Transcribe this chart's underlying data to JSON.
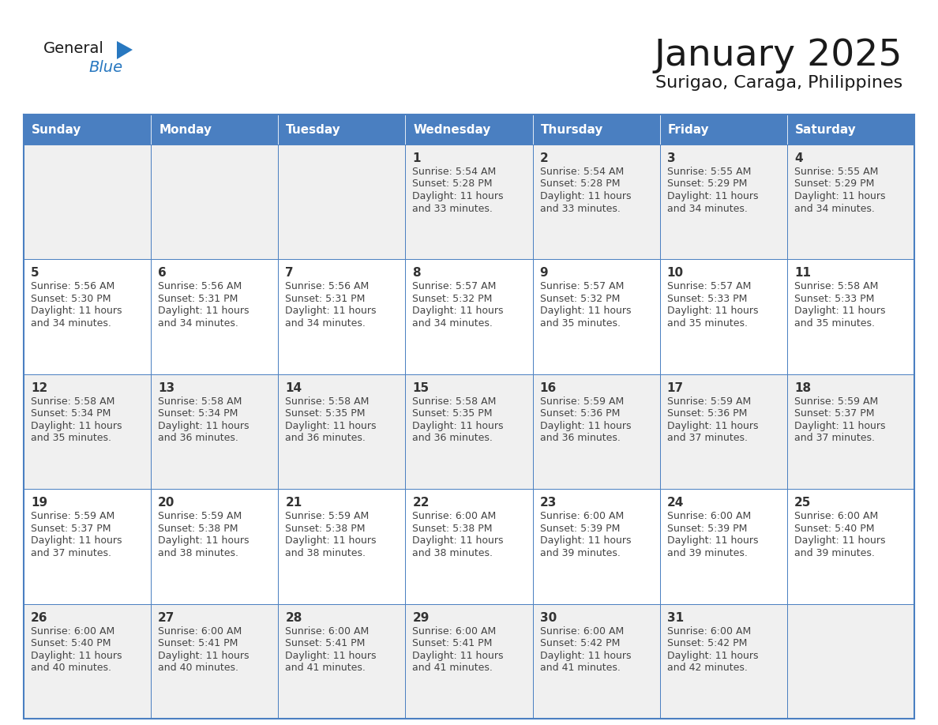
{
  "title": "January 2025",
  "subtitle": "Surigao, Caraga, Philippines",
  "days_of_week": [
    "Sunday",
    "Monday",
    "Tuesday",
    "Wednesday",
    "Thursday",
    "Friday",
    "Saturday"
  ],
  "header_bg": "#4a7fc1",
  "header_text": "#FFFFFF",
  "cell_bg_odd": "#f0f0f0",
  "cell_bg_even": "#FFFFFF",
  "cell_border_color": "#4a7fc1",
  "day_num_color": "#333333",
  "text_color": "#444444",
  "logo_general_color": "#1a1a1a",
  "logo_blue_color": "#2878C0",
  "calendar": [
    [
      null,
      null,
      null,
      1,
      2,
      3,
      4
    ],
    [
      5,
      6,
      7,
      8,
      9,
      10,
      11
    ],
    [
      12,
      13,
      14,
      15,
      16,
      17,
      18
    ],
    [
      19,
      20,
      21,
      22,
      23,
      24,
      25
    ],
    [
      26,
      27,
      28,
      29,
      30,
      31,
      null
    ]
  ],
  "sunrise": {
    "1": "5:54 AM",
    "2": "5:54 AM",
    "3": "5:55 AM",
    "4": "5:55 AM",
    "5": "5:56 AM",
    "6": "5:56 AM",
    "7": "5:56 AM",
    "8": "5:57 AM",
    "9": "5:57 AM",
    "10": "5:57 AM",
    "11": "5:58 AM",
    "12": "5:58 AM",
    "13": "5:58 AM",
    "14": "5:58 AM",
    "15": "5:58 AM",
    "16": "5:59 AM",
    "17": "5:59 AM",
    "18": "5:59 AM",
    "19": "5:59 AM",
    "20": "5:59 AM",
    "21": "5:59 AM",
    "22": "6:00 AM",
    "23": "6:00 AM",
    "24": "6:00 AM",
    "25": "6:00 AM",
    "26": "6:00 AM",
    "27": "6:00 AM",
    "28": "6:00 AM",
    "29": "6:00 AM",
    "30": "6:00 AM",
    "31": "6:00 AM"
  },
  "sunset": {
    "1": "5:28 PM",
    "2": "5:28 PM",
    "3": "5:29 PM",
    "4": "5:29 PM",
    "5": "5:30 PM",
    "6": "5:31 PM",
    "7": "5:31 PM",
    "8": "5:32 PM",
    "9": "5:32 PM",
    "10": "5:33 PM",
    "11": "5:33 PM",
    "12": "5:34 PM",
    "13": "5:34 PM",
    "14": "5:35 PM",
    "15": "5:35 PM",
    "16": "5:36 PM",
    "17": "5:36 PM",
    "18": "5:37 PM",
    "19": "5:37 PM",
    "20": "5:38 PM",
    "21": "5:38 PM",
    "22": "5:38 PM",
    "23": "5:39 PM",
    "24": "5:39 PM",
    "25": "5:40 PM",
    "26": "5:40 PM",
    "27": "5:41 PM",
    "28": "5:41 PM",
    "29": "5:41 PM",
    "30": "5:42 PM",
    "31": "5:42 PM"
  },
  "daylight": {
    "1": "11 hours and 33 minutes.",
    "2": "11 hours and 33 minutes.",
    "3": "11 hours and 34 minutes.",
    "4": "11 hours and 34 minutes.",
    "5": "11 hours and 34 minutes.",
    "6": "11 hours and 34 minutes.",
    "7": "11 hours and 34 minutes.",
    "8": "11 hours and 34 minutes.",
    "9": "11 hours and 35 minutes.",
    "10": "11 hours and 35 minutes.",
    "11": "11 hours and 35 minutes.",
    "12": "11 hours and 35 minutes.",
    "13": "11 hours and 36 minutes.",
    "14": "11 hours and 36 minutes.",
    "15": "11 hours and 36 minutes.",
    "16": "11 hours and 36 minutes.",
    "17": "11 hours and 37 minutes.",
    "18": "11 hours and 37 minutes.",
    "19": "11 hours and 37 minutes.",
    "20": "11 hours and 38 minutes.",
    "21": "11 hours and 38 minutes.",
    "22": "11 hours and 38 minutes.",
    "23": "11 hours and 39 minutes.",
    "24": "11 hours and 39 minutes.",
    "25": "11 hours and 39 minutes.",
    "26": "11 hours and 40 minutes.",
    "27": "11 hours and 40 minutes.",
    "28": "11 hours and 41 minutes.",
    "29": "11 hours and 41 minutes.",
    "30": "11 hours and 41 minutes.",
    "31": "11 hours and 42 minutes."
  }
}
